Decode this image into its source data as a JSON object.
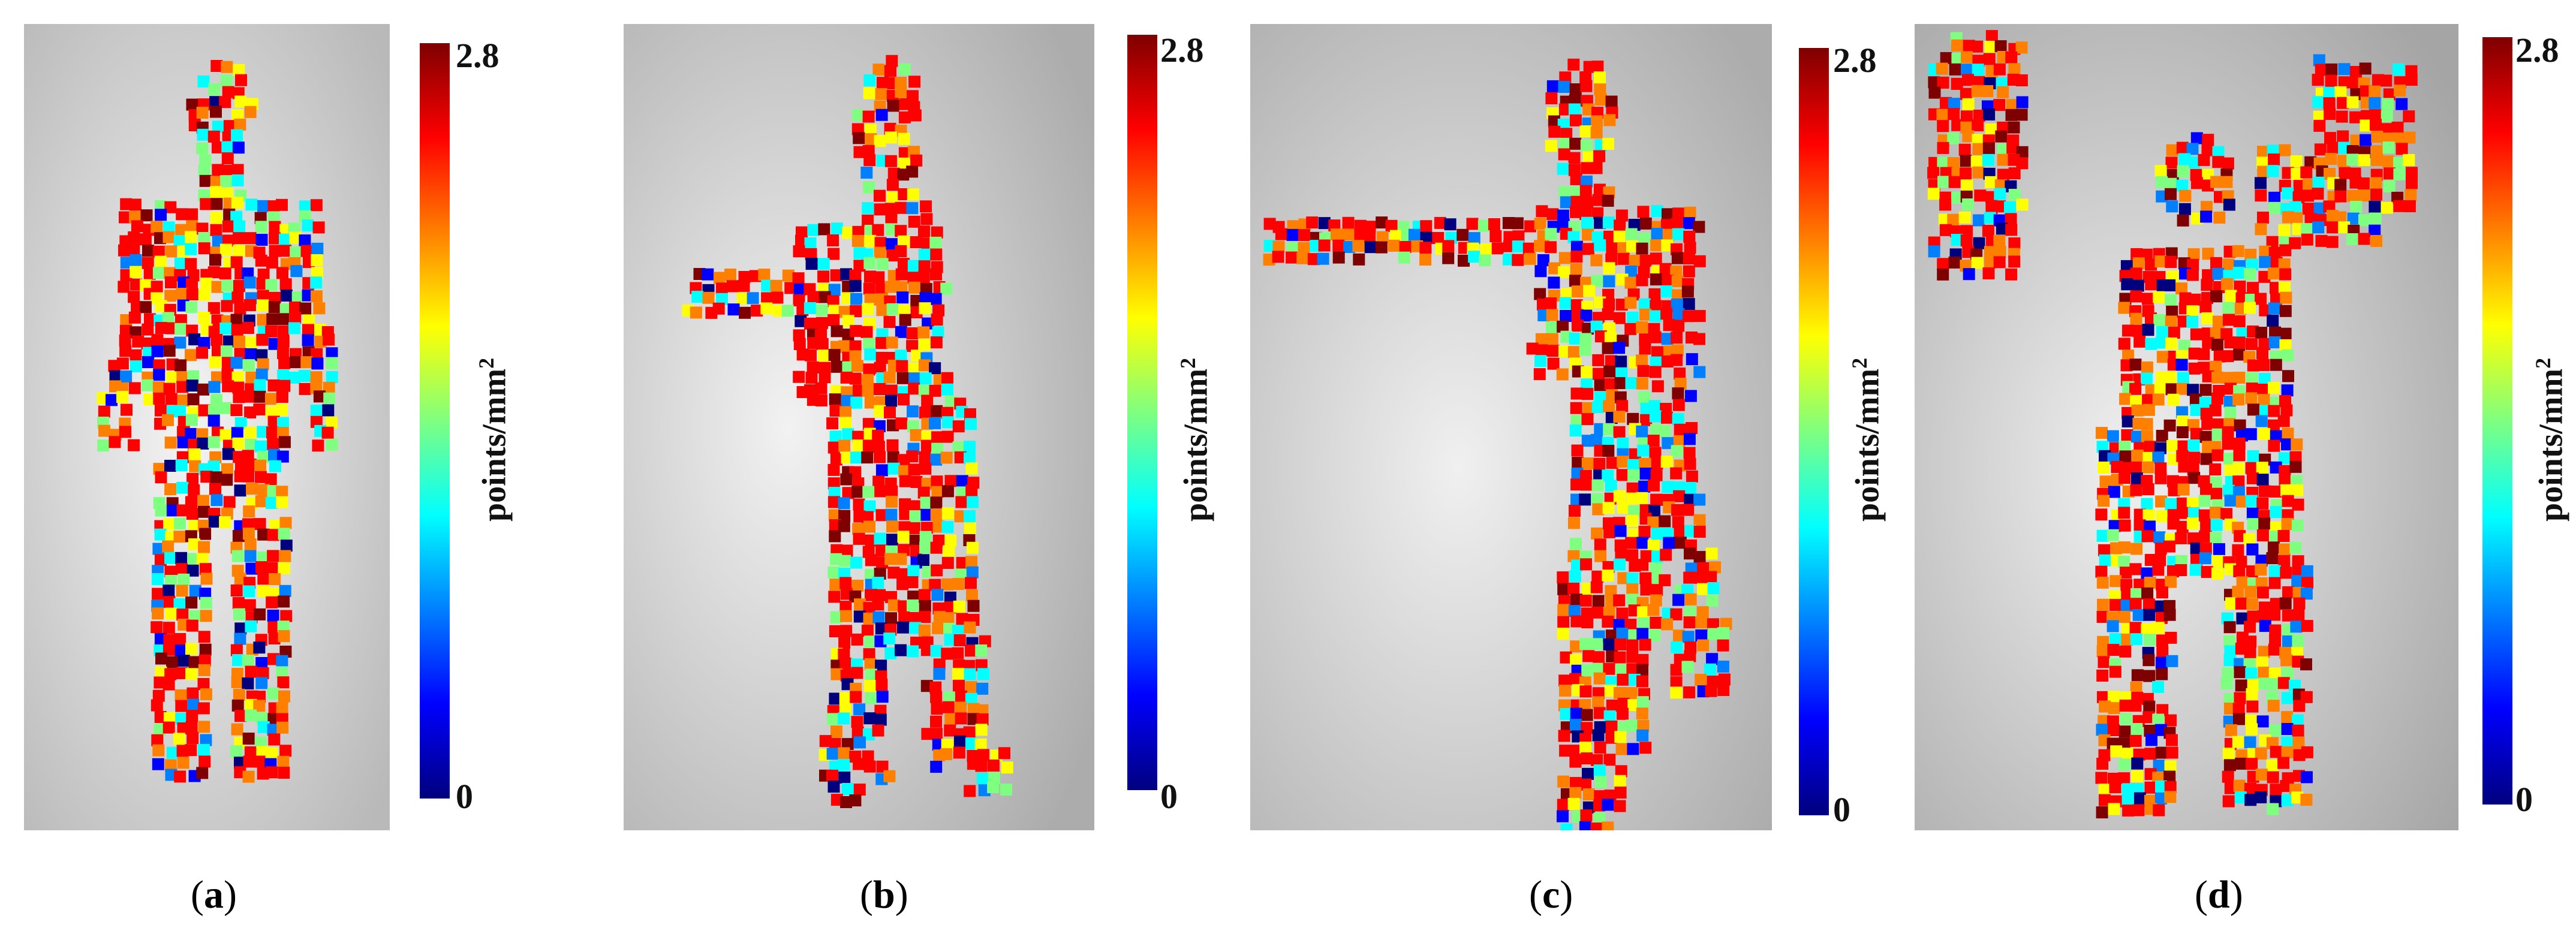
{
  "colorbar": {
    "max_label": "2.8",
    "min_label": "0",
    "unit_base": "points/mm",
    "unit_exp": "2",
    "colors": [
      "#00007f",
      "#0000ff",
      "#007fff",
      "#00ffff",
      "#7fff7f",
      "#ffff00",
      "#ff7f00",
      "#ff0000",
      "#7f0000"
    ]
  },
  "panels": [
    {
      "id": "a",
      "letter": "a",
      "pose": "standing-front"
    },
    {
      "id": "b",
      "letter": "b",
      "pose": "walking-arm-forward"
    },
    {
      "id": "c",
      "letter": "c",
      "pose": "arm-extended-knee-raised"
    },
    {
      "id": "d",
      "letter": "d",
      "pose": "arms-raised"
    }
  ]
}
